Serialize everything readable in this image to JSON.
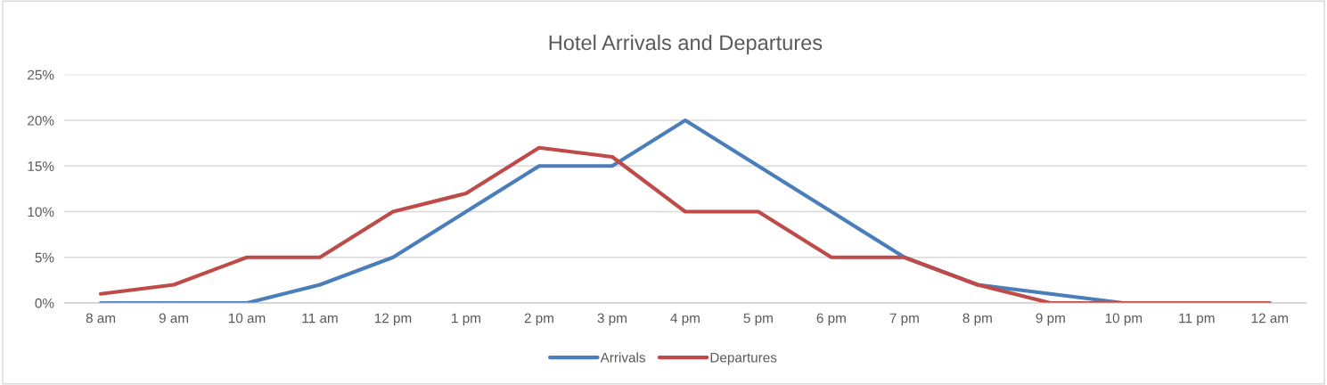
{
  "chart_data": {
    "type": "line",
    "title": "Hotel Arrivals and Departures",
    "categories": [
      "8 am",
      "9 am",
      "10 am",
      "11 am",
      "12 pm",
      "1 pm",
      "2 pm",
      "3 pm",
      "4 pm",
      "5 pm",
      "6 pm",
      "7 pm",
      "8 pm",
      "9 pm",
      "10 pm",
      "11 pm",
      "12 am"
    ],
    "series": [
      {
        "name": "Arrivals",
        "color": "#4a7ebb",
        "values": [
          0,
          0,
          0,
          2,
          5,
          10,
          15,
          15,
          20,
          15,
          10,
          5,
          2,
          1,
          0,
          0,
          0
        ]
      },
      {
        "name": "Departures",
        "color": "#be4b48",
        "values": [
          1,
          2,
          5,
          5,
          10,
          12,
          17,
          16,
          10,
          10,
          5,
          5,
          2,
          0,
          0,
          0,
          0
        ]
      }
    ],
    "ylim": [
      0,
      25
    ],
    "yticks": [
      {
        "value": 0,
        "label": "0%"
      },
      {
        "value": 5,
        "label": "5%"
      },
      {
        "value": 10,
        "label": "10%"
      },
      {
        "value": 15,
        "label": "15%"
      },
      {
        "value": 20,
        "label": "20%"
      },
      {
        "value": 25,
        "label": "25%"
      }
    ],
    "grid": "y",
    "legend": "bottom",
    "marker": "none",
    "line_style": "solid"
  }
}
